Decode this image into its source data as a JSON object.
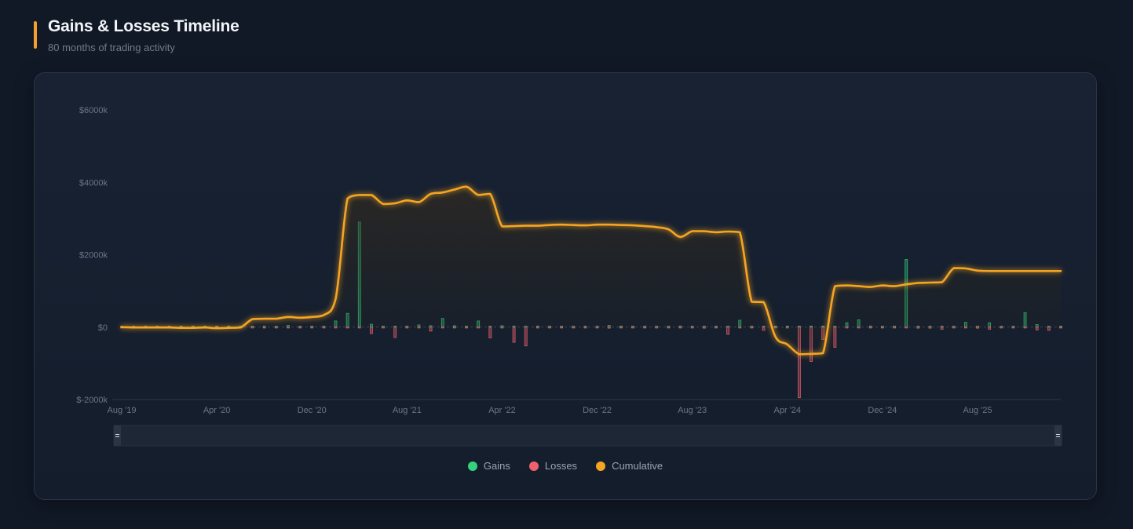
{
  "header": {
    "title": "Gains & Losses Timeline",
    "subtitle": "80 months of trading activity"
  },
  "legend": [
    {
      "label": "Gains",
      "color": "#34d27b"
    },
    {
      "label": "Losses",
      "color": "#f0616d"
    },
    {
      "label": "Cumulative",
      "color": "#f5a524"
    }
  ],
  "chart_data": {
    "type": "bar",
    "ylim": [
      -2000,
      6000
    ],
    "yticks": [
      {
        "value": 6000,
        "label": "$6000k"
      },
      {
        "value": 4000,
        "label": "$4000k"
      },
      {
        "value": 2000,
        "label": "$2000k"
      },
      {
        "value": 0,
        "label": "$0"
      },
      {
        "value": -2000,
        "label": "$-2000k"
      }
    ],
    "xticks": [
      {
        "index": 0,
        "label": "Aug '19"
      },
      {
        "index": 8,
        "label": "Apr '20"
      },
      {
        "index": 16,
        "label": "Dec '20"
      },
      {
        "index": 24,
        "label": "Aug '21"
      },
      {
        "index": 32,
        "label": "Apr '22"
      },
      {
        "index": 40,
        "label": "Dec '22"
      },
      {
        "index": 48,
        "label": "Aug '23"
      },
      {
        "index": 56,
        "label": "Apr '24"
      },
      {
        "index": 64,
        "label": "Dec '24"
      },
      {
        "index": 72,
        "label": "Aug '25"
      }
    ],
    "series": [
      {
        "name": "Gains",
        "color": "#34d27b",
        "values": [
          0,
          0,
          0,
          0,
          0,
          0,
          0,
          0,
          0,
          0,
          0,
          20,
          10,
          0,
          50,
          0,
          0,
          0,
          170,
          380,
          2900,
          80,
          20,
          0,
          0,
          60,
          40,
          240,
          40,
          10,
          170,
          0,
          40,
          30,
          0,
          30,
          0,
          0,
          20,
          10,
          0,
          50,
          30,
          0,
          0,
          0,
          0,
          30,
          0,
          0,
          0,
          0,
          190,
          0,
          0,
          0,
          0,
          10,
          0,
          0,
          0,
          120,
          200,
          30,
          10,
          30,
          1870,
          0,
          0,
          0,
          0,
          130,
          0,
          120,
          0,
          0,
          400,
          70,
          0,
          0
        ]
      },
      {
        "name": "Losses",
        "color": "#f0616d",
        "values": [
          0,
          0,
          0,
          0,
          0,
          0,
          0,
          0,
          0,
          0,
          0,
          0,
          0,
          0,
          0,
          0,
          0,
          0,
          0,
          0,
          0,
          -180,
          0,
          -290,
          0,
          0,
          -110,
          0,
          0,
          0,
          0,
          -300,
          0,
          -420,
          -520,
          0,
          0,
          0,
          0,
          0,
          0,
          -30,
          0,
          0,
          0,
          0,
          0,
          0,
          0,
          -30,
          0,
          -200,
          0,
          0,
          -90,
          0,
          0,
          -1950,
          -950,
          -340,
          -560,
          0,
          0,
          0,
          0,
          0,
          0,
          -30,
          -30,
          -60,
          0,
          0,
          -30,
          -60,
          0,
          0,
          0,
          -80,
          -90,
          0
        ]
      },
      {
        "name": "Cumulative",
        "color": "#f5a524",
        "values": [
          0,
          -10,
          -10,
          -10,
          -10,
          -20,
          -20,
          -10,
          -30,
          -20,
          -10,
          220,
          230,
          230,
          280,
          260,
          280,
          330,
          780,
          3550,
          3650,
          3650,
          3400,
          3420,
          3500,
          3450,
          3680,
          3720,
          3800,
          3880,
          3650,
          3680,
          2780,
          2790,
          2800,
          2800,
          2820,
          2830,
          2820,
          2810,
          2830,
          2830,
          2820,
          2810,
          2790,
          2760,
          2700,
          2490,
          2650,
          2650,
          2620,
          2640,
          2620,
          700,
          690,
          -270,
          -480,
          -750,
          -740,
          -720,
          1130,
          1150,
          1130,
          1110,
          1150,
          1130,
          1180,
          1220,
          1230,
          1240,
          1630,
          1620,
          1560,
          1550,
          1550,
          1550,
          1550,
          1550,
          1550,
          1550
        ]
      }
    ]
  }
}
